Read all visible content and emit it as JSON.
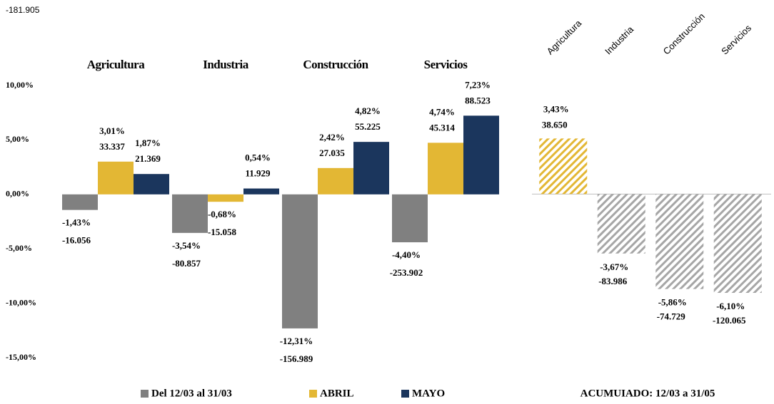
{
  "chart_data": [
    {
      "type": "bar",
      "annotation": "-181.905",
      "categories": [
        "Agricultura",
        "Industria",
        "Construcción",
        "Servicios"
      ],
      "ylim": [
        -15,
        10
      ],
      "yticks": [
        {
          "value": 10,
          "label": "10,00%"
        },
        {
          "value": 5,
          "label": "5,00%"
        },
        {
          "value": 0,
          "label": "0,00%"
        },
        {
          "value": -5,
          "label": "-5,00%"
        },
        {
          "value": -10,
          "label": "-10,00%"
        },
        {
          "value": -15,
          "label": "-15,00%"
        }
      ],
      "series": [
        {
          "name": "Del 12/03 al 31/03",
          "color": "#808080",
          "values": [
            -1.43,
            -3.54,
            -12.31,
            -4.4
          ],
          "value_labels": [
            "-1,43%",
            "-3,54%",
            "-12,31%",
            "-4,40%"
          ],
          "counts": [
            -16056,
            -80857,
            -156989,
            -253902
          ],
          "count_labels": [
            "-16.056",
            "-80.857",
            "-156.989",
            "-253.902"
          ]
        },
        {
          "name": "ABRIL",
          "color": "#e3b734",
          "values": [
            3.01,
            -0.68,
            2.42,
            4.74
          ],
          "value_labels": [
            "3,01%",
            "-0,68%",
            "2,42%",
            "4,74%"
          ],
          "counts": [
            33337,
            -15058,
            27035,
            45314
          ],
          "count_labels": [
            "33.337",
            "-15.058",
            "27.035",
            "45.314"
          ]
        },
        {
          "name": "MAYO",
          "color": "#1b365d",
          "values": [
            1.87,
            0.54,
            4.82,
            7.23
          ],
          "value_labels": [
            "1,87%",
            "0,54%",
            "4,82%",
            "7,23%"
          ],
          "counts": [
            21369,
            11929,
            55225,
            88523
          ],
          "count_labels": [
            "21.369",
            "11.929",
            "55.225",
            "88.523"
          ]
        }
      ]
    },
    {
      "type": "bar",
      "title": "ACUMUIADO: 12/03 a 31/05",
      "hatch": true,
      "categories": [
        "Agricultura",
        "Industria",
        "Construcción",
        "Servicios"
      ],
      "ylim": [
        -10.1,
        6.7
      ],
      "values": [
        3.43,
        -3.67,
        -5.86,
        -6.1
      ],
      "value_labels": [
        "3,43%",
        "-3,67%",
        "-5,86%",
        "-6,10%"
      ],
      "counts": [
        38650,
        -83986,
        -74729,
        -120065
      ],
      "count_labels": [
        "38.650",
        "-83.986",
        "-74.729",
        "-120.065"
      ],
      "colors": [
        "#e3b734",
        "#a6a6a6",
        "#a6a6a6",
        "#a6a6a6"
      ]
    }
  ]
}
